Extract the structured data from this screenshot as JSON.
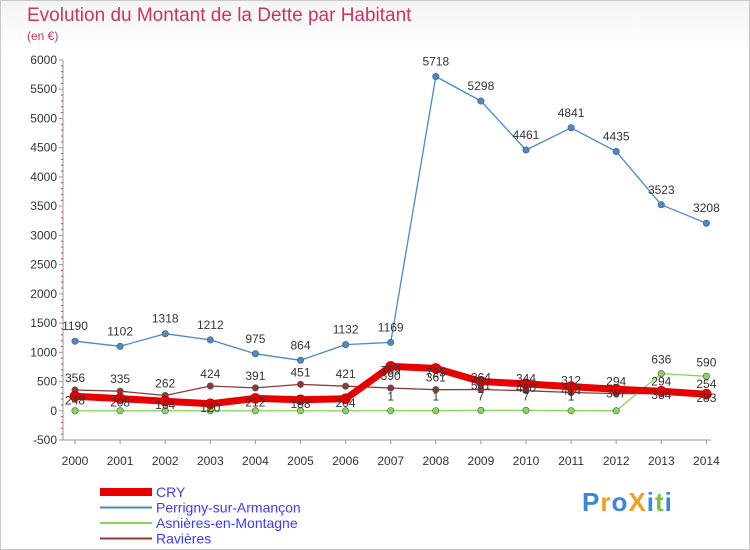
{
  "chart_data": {
    "type": "line",
    "title": "Evolution du Montant de la Dette par Habitant",
    "subtitle": "(en €)",
    "xlabel": "",
    "ylabel": "",
    "x": [
      "2000",
      "2001",
      "2002",
      "2003",
      "2004",
      "2005",
      "2006",
      "2007",
      "2008",
      "2009",
      "2010",
      "2011",
      "2012",
      "2013",
      "2014"
    ],
    "ylim": [
      -500,
      6000
    ],
    "yticks": [
      "-500",
      "0",
      "500",
      "1000",
      "1500",
      "2000",
      "2500",
      "3000",
      "3500",
      "4000",
      "4500",
      "5000",
      "5500",
      "6000"
    ],
    "grid": false,
    "legend_position": "bottom-left",
    "series": [
      {
        "name": "Perrigny-sur-Armançon",
        "color": "#4a8ac9",
        "values": [
          1190,
          1102,
          1318,
          1212,
          975,
          864,
          1132,
          1169,
          5718,
          5298,
          4461,
          4841,
          4435,
          3523,
          3208
        ],
        "labels": [
          "1190",
          "1102",
          "1318",
          "1212",
          "975",
          "864",
          "1132",
          "1169",
          "5718",
          "5298",
          "4461",
          "4841",
          "4435",
          "3523",
          "3208"
        ]
      },
      {
        "name": "Ravières",
        "color": "#8b3a3a",
        "values": [
          356,
          335,
          262,
          424,
          391,
          451,
          421,
          390,
          361,
          364,
          344,
          312,
          294,
          294,
          254
        ],
        "labels": [
          "356",
          "335",
          "262",
          "424",
          "391",
          "451",
          "421",
          "390",
          "361",
          "364",
          "344",
          "312",
          "294",
          "294",
          "254"
        ]
      },
      {
        "name": "Asnières-en-Montagne",
        "color": "#88d65c",
        "values": [
          0,
          0,
          0,
          0,
          0,
          0,
          0,
          1,
          1,
          7,
          7,
          1,
          0,
          636,
          590
        ],
        "labels": [
          "",
          "",
          "",
          "",
          "",
          "",
          "",
          "1",
          "1",
          "7",
          "7",
          "1",
          "",
          "636",
          "590"
        ]
      },
      {
        "name": "CRY",
        "color": "#e80000",
        "values": [
          248,
          208,
          164,
          120,
          212,
          188,
          204,
          759,
          725,
          501,
          460,
          414,
          367,
          334,
          283
        ],
        "labels": [
          "248",
          "208",
          "164",
          "120",
          "212",
          "188",
          "204",
          "759",
          "725",
          "501",
          "460",
          "414",
          "367",
          "334",
          "283"
        ]
      }
    ],
    "legend": [
      "CRY",
      "Perrigny-sur-Armançon",
      "Asnières-en-Montagne",
      "Ravières"
    ]
  },
  "brand": {
    "logo_text": "ProXiti",
    "letters": [
      "P",
      "r",
      "o",
      "X",
      "i",
      "t",
      "i"
    ],
    "letter_colors": [
      "#3b86d6",
      "#f0a020",
      "#3b86d6",
      "#f0a020",
      "#3b86d6",
      "#78c040",
      "#3b86d6"
    ]
  }
}
